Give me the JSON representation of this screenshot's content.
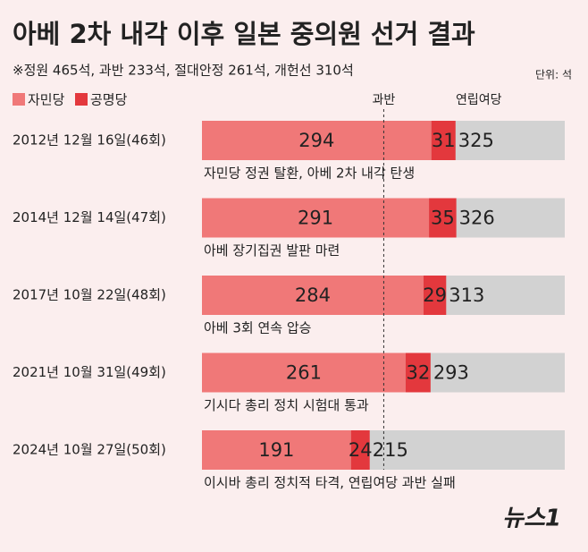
{
  "chart_data": {
    "type": "stacked-bar-horizontal",
    "title": "아베 2차 내각 이후 일본 중의원 선거 결과",
    "subtitle": "※정원 465석, 과반 233석, 절대안정 261석, 개헌선 310석",
    "unit": "단위: 석",
    "categories": [
      "2012년 12월 16일(46회)",
      "2014년 12월 14일(47회)",
      "2017년 10월 22일(48회)",
      "2021년 10월 31일(49회)",
      "2024년 10월 27일(50회)"
    ],
    "series": [
      {
        "name": "자민당",
        "color": "#f07878",
        "values": [
          294,
          291,
          284,
          261,
          191
        ]
      },
      {
        "name": "공명당",
        "color": "#e3383d",
        "values": [
          31,
          35,
          29,
          32,
          24
        ]
      }
    ],
    "totals": [
      325,
      326,
      313,
      293,
      215
    ],
    "totals_label": "연립여당",
    "majority": 233,
    "majority_label": "과반",
    "annotations": [
      "자민당 정권 탈환, 아베 2차 내각 탄생",
      "아베 장기집권 발판 마련",
      "아베 3회 연속 압승",
      "기시다 총리 정치 시험대 통과",
      "이시바 총리 정치적 타격, 연립여당 과반 실패"
    ],
    "xlim": [
      0,
      465
    ],
    "logo": "뉴스1"
  }
}
